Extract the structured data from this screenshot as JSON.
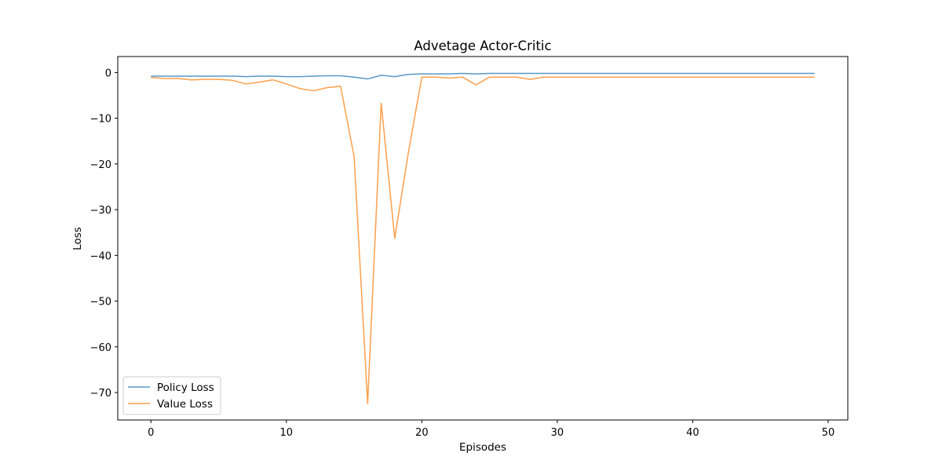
{
  "chart_data": {
    "type": "line",
    "title": "Advetage Actor-Critic",
    "xlabel": "Episodes",
    "ylabel": "Loss",
    "xlim": [
      -2.45,
      51.45
    ],
    "ylim": [
      -76,
      3.5
    ],
    "xticks": [
      0,
      10,
      20,
      30,
      40,
      50
    ],
    "yticks": [
      0,
      -10,
      -20,
      -30,
      -40,
      -50,
      -60,
      -70
    ],
    "grid": false,
    "legend_position": "lower-left",
    "x": [
      0,
      1,
      2,
      3,
      4,
      5,
      6,
      7,
      8,
      9,
      10,
      11,
      12,
      13,
      14,
      15,
      16,
      17,
      18,
      19,
      20,
      21,
      22,
      23,
      24,
      25,
      26,
      27,
      28,
      29,
      30,
      31,
      32,
      33,
      34,
      35,
      36,
      37,
      38,
      39,
      40,
      41,
      42,
      43,
      44,
      45,
      46,
      47,
      48,
      49
    ],
    "series": [
      {
        "name": "Policy Loss",
        "color": "#1f77b4",
        "values": [
          -0.8,
          -0.8,
          -0.8,
          -0.8,
          -0.8,
          -0.8,
          -0.8,
          -0.9,
          -0.8,
          -0.8,
          -0.9,
          -0.9,
          -0.8,
          -0.7,
          -0.7,
          -1.0,
          -1.4,
          -0.6,
          -0.9,
          -0.4,
          -0.3,
          -0.3,
          -0.3,
          -0.2,
          -0.3,
          -0.2,
          -0.2,
          -0.2,
          -0.2,
          -0.2,
          -0.2,
          -0.2,
          -0.2,
          -0.2,
          -0.2,
          -0.2,
          -0.2,
          -0.2,
          -0.2,
          -0.2,
          -0.2,
          -0.2,
          -0.2,
          -0.2,
          -0.2,
          -0.2,
          -0.2,
          -0.2,
          -0.2,
          -0.2
        ]
      },
      {
        "name": "Value Loss",
        "color": "#ff7f0e",
        "values": [
          -1.1,
          -1.3,
          -1.3,
          -1.6,
          -1.5,
          -1.5,
          -1.7,
          -2.5,
          -2.1,
          -1.6,
          -2.5,
          -3.5,
          -4.0,
          -3.3,
          -3.0,
          -18.4,
          -72.4,
          -6.7,
          -36.3,
          -17.6,
          -1.0,
          -1.0,
          -1.2,
          -1.0,
          -2.7,
          -1.0,
          -1.0,
          -1.0,
          -1.5,
          -1.0,
          -1.0,
          -1.0,
          -1.0,
          -1.0,
          -1.0,
          -1.0,
          -1.0,
          -1.0,
          -1.0,
          -1.0,
          -1.0,
          -1.0,
          -1.0,
          -1.0,
          -1.0,
          -1.0,
          -1.0,
          -1.0,
          -1.0,
          -1.0
        ]
      }
    ]
  }
}
